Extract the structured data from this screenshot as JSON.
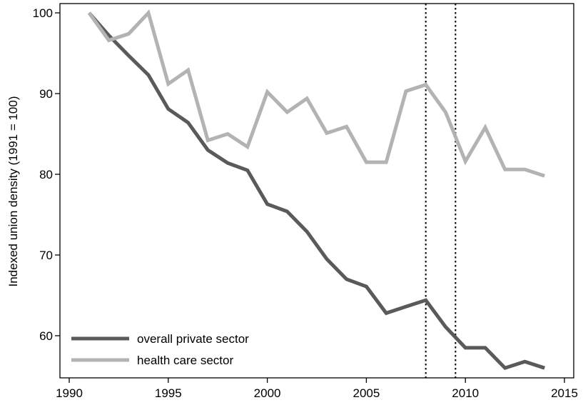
{
  "chart_data": {
    "type": "line",
    "title": "",
    "xlabel": "",
    "ylabel": "Indexed union density (1991 = 100)",
    "xlim": [
      1990,
      2015
    ],
    "ylim": [
      55,
      101.5
    ],
    "x_ticks": [
      1990,
      1995,
      2000,
      2005,
      2010,
      2015
    ],
    "y_ticks": [
      60,
      70,
      80,
      90,
      100
    ],
    "vertical_reference_lines": [
      2008,
      2009.5
    ],
    "legend_position": "bottom-left",
    "grid": false,
    "series": [
      {
        "name": "overall private sector",
        "color": "#5a5a5a",
        "x": [
          1991,
          1992,
          1993,
          1994,
          1995,
          1996,
          1997,
          1998,
          1999,
          2000,
          2001,
          2002,
          2003,
          2004,
          2005,
          2006,
          2007,
          2008,
          2009,
          2010,
          2011,
          2012,
          2013,
          2014
        ],
        "y": [
          100,
          97.2,
          94.7,
          92.3,
          88.1,
          86.4,
          83.0,
          81.4,
          80.5,
          76.3,
          75.4,
          72.9,
          69.5,
          67.0,
          66.1,
          62.8,
          63.6,
          64.4,
          61.1,
          58.5,
          58.5,
          56.0,
          56.8,
          56.0
        ]
      },
      {
        "name": "health care sector",
        "color": "#b3b3b3",
        "x": [
          1991,
          1992,
          1993,
          1994,
          1995,
          1996,
          1997,
          1998,
          1999,
          2000,
          2001,
          2002,
          2003,
          2004,
          2005,
          2006,
          2007,
          2008,
          2009,
          2010,
          2011,
          2012,
          2013,
          2014
        ],
        "y": [
          100,
          96.6,
          97.4,
          100,
          91.2,
          92.9,
          84.2,
          85.0,
          83.4,
          90.2,
          87.7,
          89.4,
          85.1,
          85.9,
          81.5,
          81.5,
          90.3,
          91.1,
          87.7,
          81.6,
          85.8,
          80.6,
          80.6,
          79.8
        ]
      }
    ]
  }
}
